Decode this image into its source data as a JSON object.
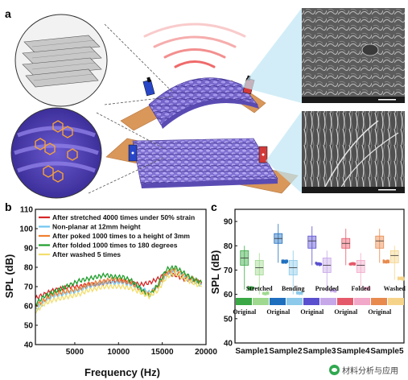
{
  "panel_labels": {
    "a": "a",
    "b": "b",
    "c": "c"
  },
  "colors": {
    "fabric": "#8a78d8",
    "substrate": "#d9975a",
    "wave": "#ef6a6a",
    "sem_bg": "#565656"
  },
  "chart_b": {
    "type": "line",
    "xlabel": "Frequency (Hz)",
    "ylabel": "SPL (dB)",
    "xlim": [
      500,
      20000
    ],
    "ylim": [
      40,
      110
    ],
    "xticks": [
      "5000",
      "10000",
      "15000",
      "20000"
    ],
    "yticks": [
      "40",
      "50",
      "60",
      "70",
      "80",
      "90",
      "100",
      "110"
    ],
    "legend_position": "top-left",
    "series": [
      {
        "name": "After stretched 4000 times under 50% strain",
        "color": "#d62728",
        "x": [
          500,
          1500,
          2500,
          3500,
          4500,
          5500,
          6500,
          7500,
          8500,
          9500,
          10500,
          11500,
          12500,
          13500,
          14500,
          15500,
          16500,
          17500,
          18500,
          19500
        ],
        "y": [
          64,
          66,
          68,
          69,
          70,
          70,
          71,
          71,
          72,
          73,
          73,
          72,
          71,
          72,
          74,
          77,
          76,
          74,
          73,
          72
        ]
      },
      {
        "name": "Non-planar at 12mm height",
        "color": "#6ec6f0",
        "x": [
          500,
          1500,
          2500,
          3500,
          4500,
          5500,
          6500,
          7500,
          8500,
          9500,
          10500,
          11500,
          12500,
          13500,
          14500,
          15500,
          16500,
          17500,
          18500,
          19500
        ],
        "y": [
          58,
          62,
          65,
          66,
          67,
          68,
          70,
          71,
          72,
          72,
          72,
          71,
          69,
          67,
          70,
          76,
          78,
          75,
          73,
          71
        ]
      },
      {
        "name": "After poked 1000 times to a height of 3mm",
        "color": "#f07f2e",
        "x": [
          500,
          1500,
          2500,
          3500,
          4500,
          5500,
          6500,
          7500,
          8500,
          9500,
          10500,
          11500,
          12500,
          13500,
          14500,
          15500,
          16500,
          17500,
          18500,
          19500
        ],
        "y": [
          60,
          63,
          66,
          67,
          68,
          69,
          71,
          72,
          73,
          74,
          73,
          72,
          68,
          66,
          70,
          77,
          79,
          76,
          74,
          72
        ]
      },
      {
        "name": "After folded 1000 times to 180 degrees",
        "color": "#1f9e2c",
        "x": [
          500,
          1500,
          2500,
          3500,
          4500,
          5500,
          6500,
          7500,
          8500,
          9500,
          10500,
          11500,
          12500,
          13500,
          14500,
          15500,
          16500,
          17500,
          18500,
          19500
        ],
        "y": [
          61,
          65,
          67,
          69,
          71,
          73,
          74,
          75,
          76,
          75,
          75,
          73,
          69,
          65,
          71,
          79,
          80,
          77,
          74,
          72
        ]
      },
      {
        "name": "After washed 5 times",
        "color": "#f3de6c",
        "x": [
          500,
          1500,
          2500,
          3500,
          4500,
          5500,
          6500,
          7500,
          8500,
          9500,
          10500,
          11500,
          12500,
          13500,
          14500,
          15500,
          16500,
          17500,
          18500,
          19500
        ],
        "y": [
          57,
          61,
          63,
          64,
          65,
          66,
          68,
          69,
          70,
          70,
          70,
          69,
          67,
          65,
          68,
          75,
          77,
          74,
          72,
          70
        ]
      }
    ]
  },
  "chart_c": {
    "type": "box",
    "ylabel": "SPL (dB)",
    "ylim": [
      40,
      95
    ],
    "yticks": [
      "40",
      "50",
      "60",
      "70",
      "80",
      "90"
    ],
    "categories": [
      "Sample1",
      "Sample2",
      "Sample3",
      "Sample4",
      "Sample5"
    ],
    "conditions": [
      "Stretched",
      "Bending",
      "Prodded",
      "Folded",
      "Washed"
    ],
    "original_label": "Original",
    "groups": [
      {
        "sample": "Sample1",
        "original": {
          "q1": 72,
          "median": 75,
          "q3": 78,
          "min": 62,
          "max": 80,
          "color": "#3aa845"
        },
        "treated": {
          "condition": "Stretched",
          "q1": 68,
          "median": 71,
          "q3": 74,
          "min": 60,
          "max": 77,
          "color": "#9fd98f"
        }
      },
      {
        "sample": "Sample2",
        "original": {
          "q1": 81,
          "median": 83,
          "q3": 85,
          "min": 73,
          "max": 89,
          "color": "#1f6fbf"
        },
        "treated": {
          "condition": "Bending",
          "q1": 68,
          "median": 71,
          "q3": 74,
          "min": 60,
          "max": 78,
          "color": "#8cc9ea"
        }
      },
      {
        "sample": "Sample3",
        "original": {
          "q1": 79,
          "median": 82,
          "q3": 84,
          "min": 72,
          "max": 88,
          "color": "#5a4fcf"
        },
        "treated": {
          "condition": "Prodded",
          "q1": 69,
          "median": 72,
          "q3": 75,
          "min": 61,
          "max": 78,
          "color": "#c6a8e8"
        }
      },
      {
        "sample": "Sample4",
        "original": {
          "q1": 79,
          "median": 81,
          "q3": 83,
          "min": 72,
          "max": 87,
          "color": "#e55a6a"
        },
        "treated": {
          "condition": "Folded",
          "q1": 69,
          "median": 72,
          "q3": 74,
          "min": 62,
          "max": 77,
          "color": "#f2a8c8"
        }
      },
      {
        "sample": "Sample5",
        "original": {
          "q1": 79,
          "median": 82,
          "q3": 84,
          "min": 73,
          "max": 87,
          "color": "#e8894e"
        },
        "treated": {
          "condition": "Washed",
          "q1": 73,
          "median": 76,
          "q3": 78,
          "min": 66,
          "max": 80,
          "color": "#f5d48a"
        }
      }
    ]
  },
  "watermark": {
    "text": "材料分析与应用"
  }
}
